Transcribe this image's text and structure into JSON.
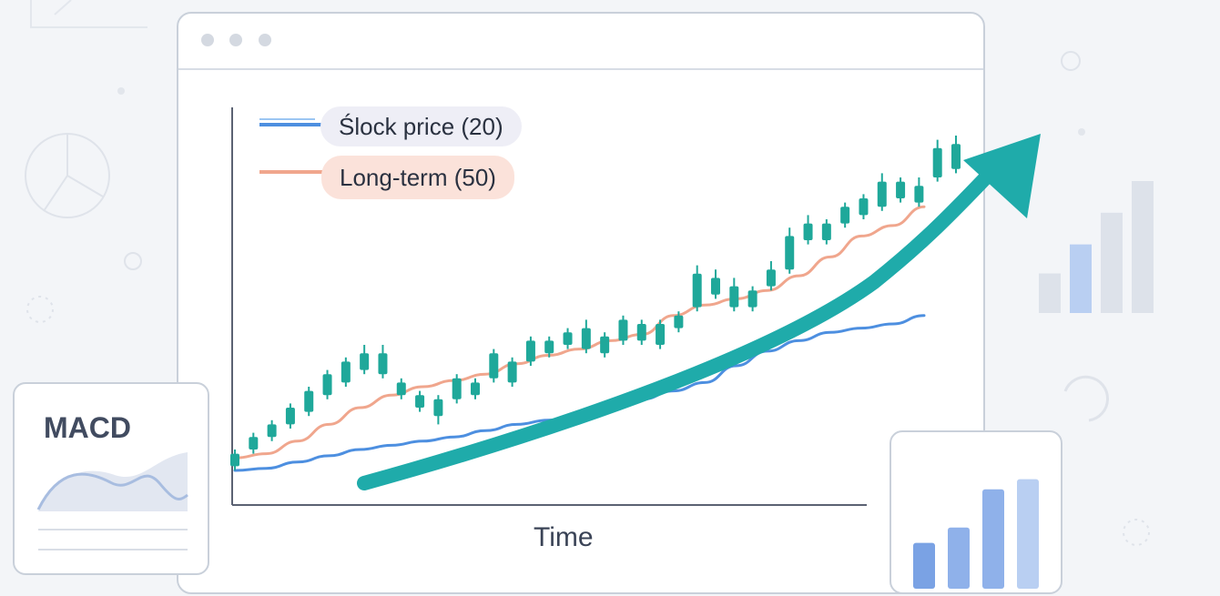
{
  "colors": {
    "candle": "#1fa89a",
    "short_ma": "#4d8fe0",
    "long_ma": "#f0a68d",
    "trend_arrow": "#1fabaa",
    "bar_light": "#b9cff2",
    "bar_mid": "#8fb1ea",
    "bar_dark": "#7aa2e4"
  },
  "icons": [
    "pie-chart-icon",
    "bar-chart-icon",
    "refresh-icon",
    "trend-up-arrow-icon"
  ],
  "chart_data": {
    "type": "line",
    "title": "",
    "xlabel": "Time",
    "ylabel": "",
    "grid": false,
    "legend_placement": "top-left",
    "series": [
      {
        "name": "Stock price (20)",
        "kind": "moving-average",
        "values": [
          5,
          5.5,
          7,
          8.5,
          10,
          11,
          12,
          13,
          14.5,
          16,
          17,
          18.5,
          20,
          22,
          24,
          26,
          30,
          33.5,
          36,
          38,
          39,
          40,
          42
        ]
      },
      {
        "name": "Long-term (50)",
        "kind": "moving-average",
        "values": [
          8,
          9,
          12,
          16,
          20,
          23,
          25,
          26.5,
          28,
          30.5,
          32.5,
          34,
          36,
          37.5,
          42,
          44.5,
          46,
          48,
          51.5,
          56,
          61,
          63.5,
          68
        ]
      },
      {
        "name": "",
        "kind": "candlestick",
        "candles": [
          {
            "o": 6,
            "c": 9,
            "h": 10,
            "l": 5
          },
          {
            "o": 10,
            "c": 13,
            "h": 14,
            "l": 9
          },
          {
            "o": 13,
            "c": 16,
            "h": 17,
            "l": 12
          },
          {
            "o": 16,
            "c": 20,
            "h": 21,
            "l": 15
          },
          {
            "o": 19,
            "c": 24,
            "h": 25,
            "l": 18
          },
          {
            "o": 23,
            "c": 28,
            "h": 29,
            "l": 22
          },
          {
            "o": 26,
            "c": 31,
            "h": 32,
            "l": 25
          },
          {
            "o": 29,
            "c": 33,
            "h": 35,
            "l": 28
          },
          {
            "o": 33,
            "c": 28,
            "h": 35,
            "l": 27
          },
          {
            "o": 26,
            "c": 23,
            "h": 27,
            "l": 22
          },
          {
            "o": 23,
            "c": 20,
            "h": 24,
            "l": 19
          },
          {
            "o": 18,
            "c": 22,
            "h": 23,
            "l": 16
          },
          {
            "o": 22,
            "c": 27,
            "h": 28,
            "l": 21
          },
          {
            "o": 26,
            "c": 23,
            "h": 27,
            "l": 22
          },
          {
            "o": 27,
            "c": 33,
            "h": 34,
            "l": 26
          },
          {
            "o": 31,
            "c": 26,
            "h": 32,
            "l": 25
          },
          {
            "o": 31,
            "c": 36,
            "h": 37,
            "l": 30
          },
          {
            "o": 36,
            "c": 33,
            "h": 37,
            "l": 32
          },
          {
            "o": 35,
            "c": 38,
            "h": 39,
            "l": 34
          },
          {
            "o": 34,
            "c": 39,
            "h": 41,
            "l": 33
          },
          {
            "o": 37,
            "c": 33,
            "h": 38,
            "l": 32
          },
          {
            "o": 36,
            "c": 41,
            "h": 42,
            "l": 35
          },
          {
            "o": 40,
            "c": 36,
            "h": 41,
            "l": 35
          },
          {
            "o": 35,
            "c": 40,
            "h": 41,
            "l": 34
          },
          {
            "o": 42,
            "c": 39,
            "h": 43,
            "l": 38
          },
          {
            "o": 44,
            "c": 52,
            "h": 54,
            "l": 43
          },
          {
            "o": 51,
            "c": 47,
            "h": 53,
            "l": 46
          },
          {
            "o": 49,
            "c": 44,
            "h": 51,
            "l": 43
          },
          {
            "o": 44,
            "c": 48,
            "h": 49,
            "l": 43
          },
          {
            "o": 49,
            "c": 53,
            "h": 55,
            "l": 48
          },
          {
            "o": 53,
            "c": 61,
            "h": 63,
            "l": 52
          },
          {
            "o": 60,
            "c": 64,
            "h": 66,
            "l": 59
          },
          {
            "o": 60,
            "c": 64,
            "h": 65,
            "l": 59
          },
          {
            "o": 64,
            "c": 68,
            "h": 69,
            "l": 63
          },
          {
            "o": 66,
            "c": 70,
            "h": 71,
            "l": 65
          },
          {
            "o": 68,
            "c": 74,
            "h": 76,
            "l": 67
          },
          {
            "o": 70,
            "c": 74,
            "h": 75,
            "l": 69
          },
          {
            "o": 69,
            "c": 73,
            "h": 75,
            "l": 68
          },
          {
            "o": 75,
            "c": 82,
            "h": 84,
            "l": 74
          },
          {
            "o": 77,
            "c": 83,
            "h": 85,
            "l": 76
          }
        ]
      }
    ],
    "ylim": [
      0,
      100
    ],
    "trend_arrow": {
      "direction": "up",
      "label": ""
    }
  },
  "legend": {
    "item_short": "Ślock price (20)",
    "item_long": "Long-term (50)"
  },
  "macd_card": {
    "title": "MACD"
  },
  "mini_bar_card": {
    "values": [
      36,
      48,
      78,
      86
    ]
  },
  "side_bars": {
    "values": [
      30,
      52,
      76,
      100
    ]
  }
}
